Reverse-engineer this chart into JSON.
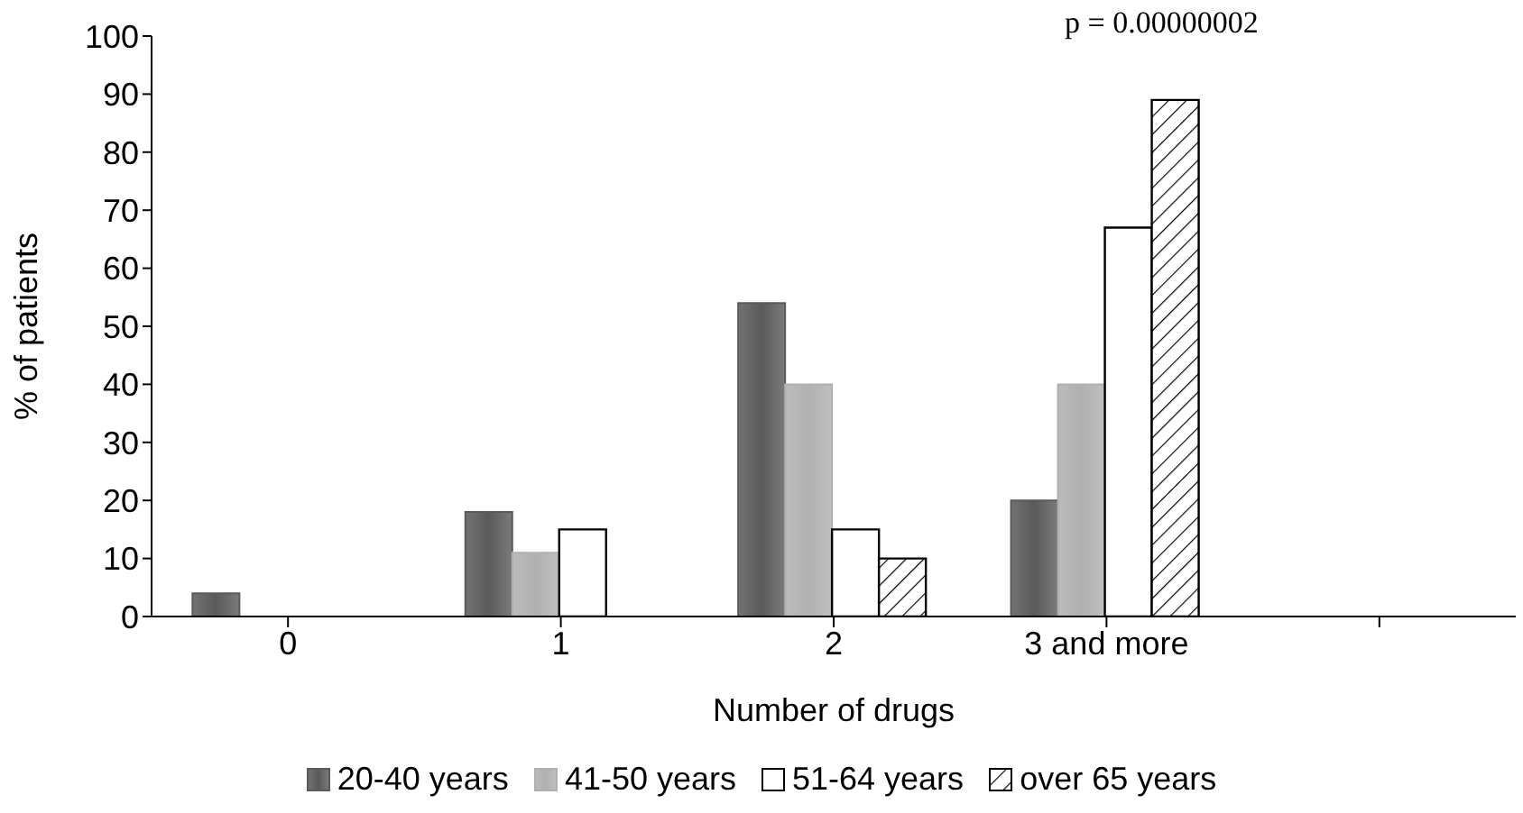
{
  "chart_data": {
    "type": "bar",
    "xlabel": "Number of drugs",
    "ylabel": "% of patients",
    "categories": [
      "0",
      "1",
      "2",
      "3 and more",
      null
    ],
    "series": [
      {
        "name": "20-40 years",
        "color": "#5a5a5a",
        "values": [
          4,
          18,
          54,
          20,
          null
        ]
      },
      {
        "name": "41-50 years",
        "color": "#b0b0b0",
        "values": [
          0,
          11,
          40,
          40,
          null
        ]
      },
      {
        "name": "51-64 years",
        "color": "#ffffff",
        "values": [
          0,
          15,
          15,
          67,
          null
        ]
      },
      {
        "name": "over 65 years",
        "color": "#000000",
        "values": [
          0,
          0,
          10,
          89,
          null
        ]
      }
    ],
    "ylim": [
      0,
      100
    ],
    "yticks": [
      0,
      10,
      20,
      30,
      40,
      50,
      60,
      70,
      80,
      90,
      100
    ],
    "grid": false,
    "legend": "bottom",
    "annotations": [
      "p = 0.00000002"
    ]
  }
}
